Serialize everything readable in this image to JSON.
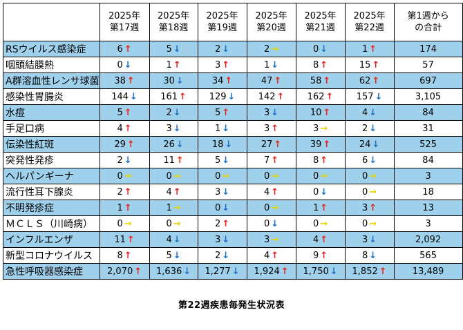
{
  "header": {
    "name": "",
    "weeks": [
      {
        "year": "2025年",
        "week": "第17週"
      },
      {
        "year": "2025年",
        "week": "第18週"
      },
      {
        "year": "2025年",
        "week": "第19週"
      },
      {
        "year": "2025年",
        "week": "第20週"
      },
      {
        "year": "2025年",
        "week": "第21週"
      },
      {
        "year": "2025年",
        "week": "第22週"
      }
    ],
    "total_line1": "第1週から",
    "total_line2": "の合計"
  },
  "arrow_glyphs": {
    "up": "↑",
    "down": "↓",
    "flat": "→"
  },
  "colors": {
    "up": "#e8221c",
    "down": "#1a6fc4",
    "flat": "#e6d400",
    "band": "#9fd1ec"
  },
  "rows": [
    {
      "name": "RSウイルス感染症",
      "cells": [
        [
          "6",
          "up"
        ],
        [
          "5",
          "down"
        ],
        [
          "2",
          "down"
        ],
        [
          "2",
          "flat"
        ],
        [
          "0",
          "down"
        ],
        [
          "1",
          "up"
        ]
      ],
      "total": "174"
    },
    {
      "name": "咽頭結膜熱",
      "cells": [
        [
          "0",
          "down"
        ],
        [
          "1",
          "up"
        ],
        [
          "3",
          "up"
        ],
        [
          "1",
          "down"
        ],
        [
          "8",
          "up"
        ],
        [
          "15",
          "up"
        ]
      ],
      "total": "57"
    },
    {
      "name": "A群溶血性レンサ球菌",
      "cells": [
        [
          "38",
          "up"
        ],
        [
          "30",
          "down"
        ],
        [
          "34",
          "up"
        ],
        [
          "47",
          "up"
        ],
        [
          "58",
          "up"
        ],
        [
          "62",
          "up"
        ]
      ],
      "total": "697"
    },
    {
      "name": "感染性胃腸炎",
      "cells": [
        [
          "144",
          "down"
        ],
        [
          "161",
          "up"
        ],
        [
          "129",
          "down"
        ],
        [
          "142",
          "up"
        ],
        [
          "162",
          "up"
        ],
        [
          "157",
          "down"
        ]
      ],
      "total": "3,105"
    },
    {
      "name": "水痘",
      "cells": [
        [
          "5",
          "up"
        ],
        [
          "2",
          "down"
        ],
        [
          "5",
          "up"
        ],
        [
          "3",
          "down"
        ],
        [
          "10",
          "up"
        ],
        [
          "4",
          "down"
        ]
      ],
      "total": "84"
    },
    {
      "name": "手足口病",
      "cells": [
        [
          "4",
          "up"
        ],
        [
          "3",
          "down"
        ],
        [
          "1",
          "down"
        ],
        [
          "3",
          "up"
        ],
        [
          "3",
          "flat"
        ],
        [
          "2",
          "down"
        ]
      ],
      "total": "31"
    },
    {
      "name": "伝染性紅斑",
      "cells": [
        [
          "29",
          "up"
        ],
        [
          "26",
          "down"
        ],
        [
          "18",
          "down"
        ],
        [
          "27",
          "up"
        ],
        [
          "39",
          "up"
        ],
        [
          "24",
          "down"
        ]
      ],
      "total": "525"
    },
    {
      "name": "突発性発疹",
      "cells": [
        [
          "2",
          "down"
        ],
        [
          "11",
          "up"
        ],
        [
          "5",
          "down"
        ],
        [
          "7",
          "up"
        ],
        [
          "8",
          "up"
        ],
        [
          "6",
          "down"
        ]
      ],
      "total": "84"
    },
    {
      "name": "ヘルパンギーナ",
      "cells": [
        [
          "0",
          "flat"
        ],
        [
          "0",
          "flat"
        ],
        [
          "0",
          "flat"
        ],
        [
          "0",
          "flat"
        ],
        [
          "0",
          "flat"
        ],
        [
          "0",
          "flat"
        ]
      ],
      "total": "3"
    },
    {
      "name": "流行性耳下腺炎",
      "cells": [
        [
          "2",
          "up"
        ],
        [
          "4",
          "up"
        ],
        [
          "3",
          "down"
        ],
        [
          "4",
          "up"
        ],
        [
          "0",
          "down"
        ],
        [
          "0",
          "flat"
        ]
      ],
      "total": "18"
    },
    {
      "name": "不明発疹症",
      "cells": [
        [
          "1",
          "up"
        ],
        [
          "1",
          "flat"
        ],
        [
          "0",
          "down"
        ],
        [
          "0",
          "flat"
        ],
        [
          "1",
          "up"
        ],
        [
          "3",
          "up"
        ]
      ],
      "total": "13"
    },
    {
      "name": "ＭＣＬＳ（川崎病）",
      "cells": [
        [
          "0",
          "flat"
        ],
        [
          "0",
          "flat"
        ],
        [
          "2",
          "up"
        ],
        [
          "0",
          "down"
        ],
        [
          "0",
          "flat"
        ],
        [
          "0",
          "flat"
        ]
      ],
      "total": "3"
    },
    {
      "name": "インフルエンザ",
      "cells": [
        [
          "11",
          "up"
        ],
        [
          "4",
          "down"
        ],
        [
          "3",
          "down"
        ],
        [
          "3",
          "flat"
        ],
        [
          "4",
          "up"
        ],
        [
          "3",
          "down"
        ]
      ],
      "total": "2,092"
    },
    {
      "name": "新型コロナウイルス",
      "cells": [
        [
          "8",
          "up"
        ],
        [
          "5",
          "down"
        ],
        [
          "2",
          "down"
        ],
        [
          "4",
          "up"
        ],
        [
          "9",
          "up"
        ],
        [
          "8",
          "down"
        ]
      ],
      "total": "565"
    },
    {
      "name": "急性呼吸器感染症",
      "cells": [
        [
          "2,070",
          "up"
        ],
        [
          "1,636",
          "down"
        ],
        [
          "1,277",
          "down"
        ],
        [
          "1,924",
          "up"
        ],
        [
          "1,750",
          "down"
        ],
        [
          "1,852",
          "up"
        ]
      ],
      "total": "13,489"
    }
  ],
  "caption": "第22週疾患毎発生状況表"
}
